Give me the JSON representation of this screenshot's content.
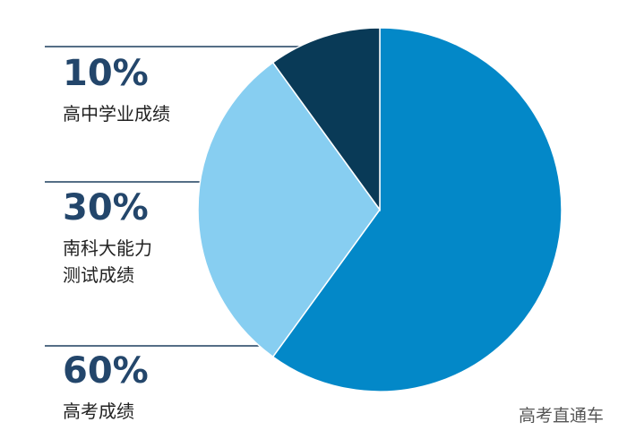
{
  "chart_data": {
    "type": "pie",
    "categories": [
      "高考成绩",
      "南科大能力\n测试成绩",
      "高中学业成绩"
    ],
    "values": [
      60,
      30,
      10
    ],
    "value_labels": [
      "60%",
      "30%",
      "10%"
    ],
    "colors": [
      "#0388c8",
      "#87cef1",
      "#093a57"
    ],
    "watermark": "高考直通车"
  }
}
